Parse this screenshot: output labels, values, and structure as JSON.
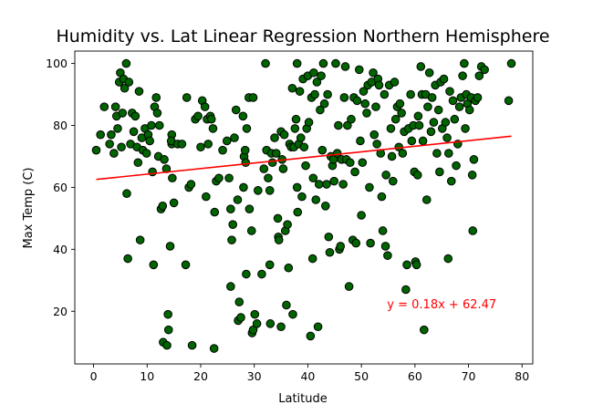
{
  "chart_data": {
    "type": "scatter",
    "title": "Humidity vs. Lat Linear Regression Northern Hemisphere",
    "xlabel": "Latitude",
    "ylabel": "Max Temp (C)",
    "xlim": [
      -3.5,
      82
    ],
    "ylim": [
      3,
      104
    ],
    "xticks": [
      0,
      10,
      20,
      30,
      40,
      50,
      60,
      70,
      80
    ],
    "yticks": [
      20,
      40,
      60,
      80,
      100
    ],
    "grid": false,
    "point_color": "#006400",
    "point_edge_color": "#000000",
    "regression": {
      "slope": 0.18,
      "intercept": 62.47,
      "x_range": [
        0.5,
        78
      ],
      "color": "#ff0000",
      "equation_label": "y = 0.18x +  62.47",
      "label_anchor": [
        54.8,
        21
      ]
    },
    "points": [
      [
        0.5,
        72
      ],
      [
        1.3,
        77
      ],
      [
        2.0,
        86
      ],
      [
        3.0,
        74
      ],
      [
        3.3,
        77
      ],
      [
        3.8,
        71
      ],
      [
        4.1,
        86
      ],
      [
        4.3,
        83
      ],
      [
        4.5,
        79
      ],
      [
        4.8,
        94
      ],
      [
        5.0,
        97
      ],
      [
        5.2,
        73
      ],
      [
        5.4,
        84
      ],
      [
        5.6,
        95
      ],
      [
        5.8,
        92
      ],
      [
        6.1,
        100
      ],
      [
        6.2,
        58
      ],
      [
        6.4,
        37
      ],
      [
        6.6,
        94
      ],
      [
        6.9,
        74
      ],
      [
        7.2,
        84
      ],
      [
        7.5,
        78
      ],
      [
        7.8,
        83
      ],
      [
        8.1,
        73
      ],
      [
        8.3,
        68
      ],
      [
        8.5,
        91
      ],
      [
        8.7,
        43
      ],
      [
        9.0,
        76
      ],
      [
        9.2,
        72
      ],
      [
        9.6,
        79
      ],
      [
        9.9,
        71
      ],
      [
        10.2,
        77
      ],
      [
        10.5,
        75
      ],
      [
        10.8,
        80
      ],
      [
        11.0,
        65
      ],
      [
        11.2,
        35
      ],
      [
        11.4,
        86
      ],
      [
        11.7,
        89
      ],
      [
        11.9,
        84
      ],
      [
        12.1,
        70
      ],
      [
        12.3,
        80
      ],
      [
        12.6,
        53
      ],
      [
        12.9,
        54
      ],
      [
        13.2,
        69
      ],
      [
        13.0,
        10
      ],
      [
        13.6,
        66
      ],
      [
        13.7,
        9
      ],
      [
        13.9,
        19
      ],
      [
        14.0,
        14
      ],
      [
        14.3,
        41
      ],
      [
        14.6,
        77
      ],
      [
        14.6,
        74
      ],
      [
        14.7,
        63
      ],
      [
        14.5,
        75
      ],
      [
        15.0,
        55
      ],
      [
        15.7,
        74
      ],
      [
        16.5,
        74
      ],
      [
        17.2,
        35
      ],
      [
        17.4,
        89
      ],
      [
        17.8,
        60
      ],
      [
        18.2,
        61
      ],
      [
        18.4,
        9
      ],
      [
        19.0,
        82
      ],
      [
        19.5,
        83
      ],
      [
        20.0,
        73
      ],
      [
        20.3,
        88
      ],
      [
        20.8,
        86
      ],
      [
        21.0,
        57
      ],
      [
        21.2,
        82
      ],
      [
        21.4,
        74
      ],
      [
        21.8,
        83
      ],
      [
        22.0,
        82
      ],
      [
        22.3,
        79
      ],
      [
        22.6,
        52
      ],
      [
        22.5,
        8
      ],
      [
        22.9,
        62
      ],
      [
        23.4,
        63
      ],
      [
        24.1,
        72
      ],
      [
        24.9,
        75
      ],
      [
        25.3,
        63
      ],
      [
        25.6,
        53
      ],
      [
        25.6,
        28
      ],
      [
        25.8,
        43
      ],
      [
        26.0,
        48
      ],
      [
        26.3,
        76
      ],
      [
        26.6,
        85
      ],
      [
        26.9,
        56
      ],
      [
        27.2,
        23
      ],
      [
        27.0,
        17
      ],
      [
        27.5,
        18
      ],
      [
        27.9,
        83
      ],
      [
        28.0,
        60
      ],
      [
        28.1,
        70
      ],
      [
        28.3,
        72
      ],
      [
        28.5,
        32
      ],
      [
        28.6,
        79
      ],
      [
        28.4,
        68
      ],
      [
        29.0,
        89
      ],
      [
        29.1,
        53
      ],
      [
        29.5,
        46
      ],
      [
        29.8,
        89
      ],
      [
        29.6,
        13
      ],
      [
        29.8,
        14
      ],
      [
        30.1,
        19
      ],
      [
        30.5,
        16
      ],
      [
        30.7,
        59
      ],
      [
        31.4,
        32
      ],
      [
        31.8,
        66
      ],
      [
        32.1,
        100
      ],
      [
        32.3,
        72
      ],
      [
        32.6,
        63
      ],
      [
        32.9,
        59
      ],
      [
        32.9,
        35
      ],
      [
        33.2,
        71
      ],
      [
        33.4,
        68
      ],
      [
        33.0,
        16
      ],
      [
        33.8,
        76
      ],
      [
        34.1,
        71
      ],
      [
        34.4,
        50
      ],
      [
        34.5,
        44
      ],
      [
        34.6,
        43
      ],
      [
        35.0,
        78
      ],
      [
        35.2,
        69
      ],
      [
        35.4,
        66
      ],
      [
        35.6,
        77
      ],
      [
        35.0,
        15
      ],
      [
        35.8,
        46
      ],
      [
        36.0,
        22
      ],
      [
        36.2,
        48
      ],
      [
        36.4,
        34
      ],
      [
        36.6,
        74
      ],
      [
        36.9,
        73
      ],
      [
        37.1,
        92
      ],
      [
        37.2,
        19
      ],
      [
        37.4,
        73
      ],
      [
        37.6,
        79
      ],
      [
        37.8,
        82
      ],
      [
        38.0,
        100
      ],
      [
        38.0,
        60
      ],
      [
        38.1,
        52
      ],
      [
        38.3,
        74
      ],
      [
        38.5,
        91
      ],
      [
        38.7,
        76
      ],
      [
        38.9,
        57
      ],
      [
        39.1,
        95
      ],
      [
        39.3,
        73
      ],
      [
        39.6,
        67
      ],
      [
        39.8,
        79
      ],
      [
        40.0,
        96
      ],
      [
        40.2,
        81
      ],
      [
        40.5,
        12
      ],
      [
        40.7,
        89
      ],
      [
        40.9,
        37
      ],
      [
        41.0,
        63
      ],
      [
        41.1,
        97
      ],
      [
        41.3,
        90
      ],
      [
        41.5,
        56
      ],
      [
        41.7,
        94
      ],
      [
        41.9,
        15
      ],
      [
        42.1,
        61
      ],
      [
        42.3,
        85
      ],
      [
        42.5,
        96
      ],
      [
        42.7,
        72
      ],
      [
        42.9,
        100
      ],
      [
        43.1,
        87
      ],
      [
        43.3,
        54
      ],
      [
        43.5,
        61
      ],
      [
        43.7,
        90
      ],
      [
        43.9,
        44
      ],
      [
        44.1,
        39
      ],
      [
        44.3,
        70
      ],
      [
        44.6,
        67
      ],
      [
        44.8,
        69
      ],
      [
        44.9,
        62
      ],
      [
        45.2,
        100
      ],
      [
        45.5,
        71
      ],
      [
        45.7,
        80
      ],
      [
        45.9,
        40
      ],
      [
        46.1,
        41
      ],
      [
        46.3,
        69
      ],
      [
        46.6,
        61
      ],
      [
        46.8,
        89
      ],
      [
        47.0,
        99
      ],
      [
        47.2,
        69
      ],
      [
        47.4,
        80
      ],
      [
        47.7,
        28
      ],
      [
        47.9,
        68
      ],
      [
        48.1,
        82
      ],
      [
        48.4,
        43
      ],
      [
        48.6,
        89
      ],
      [
        48.8,
        65
      ],
      [
        49.0,
        42
      ],
      [
        49.2,
        88
      ],
      [
        49.6,
        98
      ],
      [
        49.8,
        75
      ],
      [
        50.0,
        51
      ],
      [
        50.2,
        68
      ],
      [
        50.4,
        91
      ],
      [
        50.7,
        87
      ],
      [
        51.0,
        84
      ],
      [
        51.2,
        93
      ],
      [
        51.5,
        60
      ],
      [
        51.7,
        42
      ],
      [
        51.9,
        94
      ],
      [
        52.2,
        97
      ],
      [
        52.4,
        77
      ],
      [
        52.7,
        86
      ],
      [
        52.9,
        74
      ],
      [
        53.1,
        95
      ],
      [
        53.3,
        93
      ],
      [
        53.6,
        71
      ],
      [
        53.8,
        57
      ],
      [
        54.0,
        46
      ],
      [
        54.3,
        90
      ],
      [
        54.5,
        41
      ],
      [
        54.6,
        64
      ],
      [
        54.9,
        38
      ],
      [
        55.2,
        93
      ],
      [
        55.5,
        79
      ],
      [
        55.7,
        70
      ],
      [
        55.9,
        62
      ],
      [
        56.2,
        94
      ],
      [
        56.4,
        82
      ],
      [
        56.7,
        86
      ],
      [
        57.0,
        73
      ],
      [
        57.2,
        87
      ],
      [
        57.5,
        84
      ],
      [
        57.7,
        71
      ],
      [
        58.0,
        78
      ],
      [
        58.3,
        27
      ],
      [
        58.5,
        35
      ],
      [
        58.8,
        79
      ],
      [
        59.2,
        90
      ],
      [
        59.4,
        75
      ],
      [
        59.7,
        80
      ],
      [
        59.9,
        65
      ],
      [
        60.1,
        36
      ],
      [
        60.3,
        35
      ],
      [
        60.5,
        64
      ],
      [
        60.6,
        83
      ],
      [
        60.8,
        80
      ],
      [
        61.1,
        99
      ],
      [
        61.3,
        90
      ],
      [
        61.5,
        75
      ],
      [
        61.7,
        14
      ],
      [
        62.0,
        90
      ],
      [
        62.2,
        56
      ],
      [
        62.4,
        86
      ],
      [
        62.7,
        97
      ],
      [
        63.0,
        78
      ],
      [
        63.2,
        89
      ],
      [
        63.5,
        81
      ],
      [
        63.8,
        93
      ],
      [
        64.1,
        71
      ],
      [
        64.4,
        85
      ],
      [
        64.6,
        65
      ],
      [
        64.8,
        94
      ],
      [
        65.1,
        79
      ],
      [
        65.4,
        95
      ],
      [
        65.7,
        81
      ],
      [
        66.0,
        76
      ],
      [
        66.3,
        71
      ],
      [
        66.2,
        37
      ],
      [
        66.5,
        91
      ],
      [
        66.8,
        62
      ],
      [
        67.1,
        88
      ],
      [
        67.4,
        82
      ],
      [
        67.7,
        67
      ],
      [
        68.0,
        74
      ],
      [
        68.3,
        86
      ],
      [
        68.6,
        89
      ],
      [
        68.9,
        96
      ],
      [
        69.2,
        100
      ],
      [
        69.4,
        79
      ],
      [
        69.6,
        90
      ],
      [
        69.8,
        87
      ],
      [
        70.2,
        85
      ],
      [
        70.5,
        89
      ],
      [
        70.7,
        64
      ],
      [
        70.8,
        46
      ],
      [
        71.0,
        69
      ],
      [
        71.3,
        88
      ],
      [
        71.7,
        89
      ],
      [
        72.0,
        96
      ],
      [
        72.4,
        99
      ],
      [
        73.0,
        98
      ],
      [
        77.5,
        88
      ],
      [
        78.0,
        100
      ]
    ]
  }
}
